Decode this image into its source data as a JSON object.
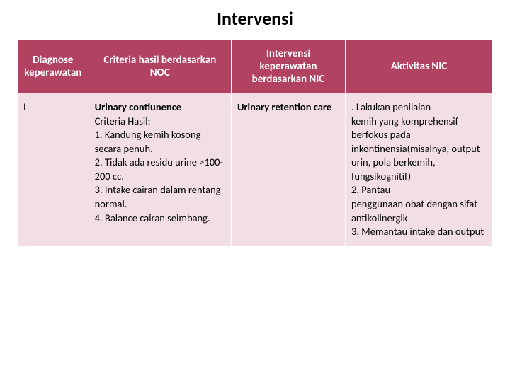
{
  "title": "Intervensi",
  "table": {
    "headers": {
      "col1": "Diagnose keperawatan",
      "col2": "Criteria hasil berdasarkan NOC",
      "col3": "Intervensi keperawatan berdasarkan NIC",
      "col4": "Aktivitas NIC"
    },
    "row": {
      "diagnose": "I",
      "noc_title": "Urinary contiunence",
      "noc_sub": "Criteria Hasil:",
      "noc_item1": "1. Kandung kemih kosong secara penuh.",
      "noc_item2": "2. Tidak ada residu urine >100-200 cc.",
      "noc_item3": "3. Intake cairan dalam rentang normal.",
      "noc_item4": "4. Balance cairan seimbang.",
      "nic_title": "Urinary retention care",
      "act1a": ".     Lakukan penilaian",
      "act1b": "kemih yang komprehensif berfokus pada inkontinensia(misalnya, output urin, pola berkemih, fungsikognitif)",
      "act2a": "2.     Pantau",
      "act2b": "penggunaan obat dengan sifat antikolinergik",
      "act3": "3.     Memantau intake dan output"
    }
  },
  "colors": {
    "header_bg": "#b14262",
    "header_text": "#ffffff",
    "cell_bg": "#f1dfe5",
    "text": "#000000",
    "page_bg": "#ffffff"
  }
}
